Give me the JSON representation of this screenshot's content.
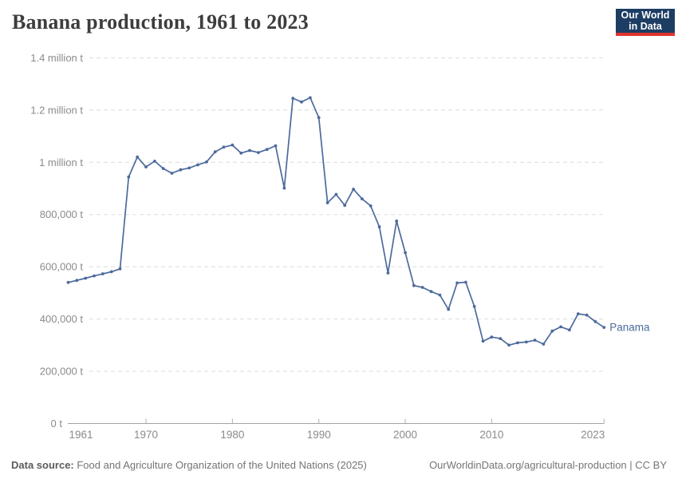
{
  "header": {
    "title": "Banana production, 1961 to 2023",
    "logo_line1": "Our World",
    "logo_line2": "in Data"
  },
  "footer": {
    "datasource_label": "Data source:",
    "datasource_text": " Food and Agriculture Organization of the United Nations (2025)",
    "credit_text": "OurWorldinData.org/agricultural-production | CC BY"
  },
  "colors": {
    "line": "#4C6A9C",
    "grid": "#dcdcdc",
    "axis_line": "#a3a3a3",
    "tick": "#b0b0b0",
    "tick_text": "#8b8b8b",
    "title": "#3d3d3d",
    "logo_bg": "#1d3d63",
    "logo_accent": "#dc352e"
  },
  "chart_data": {
    "type": "line",
    "title": "Banana production, 1961 to 2023",
    "entity": "Panama",
    "unit": "t",
    "grid": "horizontal-dashed",
    "legend_position": "end-of-line-label",
    "xlim": [
      1961,
      2023
    ],
    "ylim": [
      0,
      1400000
    ],
    "x": [
      1961,
      1962,
      1963,
      1964,
      1965,
      1966,
      1967,
      1968,
      1969,
      1970,
      1971,
      1972,
      1973,
      1974,
      1975,
      1976,
      1977,
      1978,
      1979,
      1980,
      1981,
      1982,
      1983,
      1984,
      1985,
      1986,
      1987,
      1988,
      1989,
      1990,
      1991,
      1992,
      1993,
      1994,
      1995,
      1996,
      1997,
      1998,
      1999,
      2000,
      2001,
      2002,
      2003,
      2004,
      2005,
      2006,
      2007,
      2008,
      2009,
      2010,
      2011,
      2012,
      2013,
      2014,
      2015,
      2016,
      2017,
      2018,
      2019,
      2020,
      2021,
      2022,
      2023
    ],
    "values": [
      540000,
      548000,
      556000,
      565000,
      573000,
      581000,
      592000,
      944000,
      1020000,
      982000,
      1004000,
      976000,
      958000,
      971000,
      978000,
      990000,
      1001000,
      1040000,
      1058000,
      1066000,
      1035000,
      1045000,
      1037000,
      1049000,
      1063000,
      901000,
      1245000,
      1231000,
      1247000,
      1171000,
      845000,
      877000,
      835000,
      897000,
      860000,
      833000,
      753000,
      576000,
      775000,
      654000,
      528000,
      521000,
      505000,
      492000,
      437000,
      538000,
      541000,
      448000,
      315000,
      331000,
      325000,
      300000,
      309000,
      312000,
      319000,
      304000,
      354000,
      370000,
      358000,
      420000,
      415000,
      390000,
      368000
    ],
    "yticks": [
      {
        "value": 0,
        "label": "0 t"
      },
      {
        "value": 200000,
        "label": "200,000 t"
      },
      {
        "value": 400000,
        "label": "400,000 t"
      },
      {
        "value": 600000,
        "label": "600,000 t"
      },
      {
        "value": 800000,
        "label": "800,000 t"
      },
      {
        "value": 1000000,
        "label": "1 million t"
      },
      {
        "value": 1200000,
        "label": "1.2 million t"
      },
      {
        "value": 1400000,
        "label": "1.4 million t"
      }
    ],
    "xticks": [
      1961,
      1970,
      1980,
      1990,
      2000,
      2010,
      2023
    ]
  }
}
